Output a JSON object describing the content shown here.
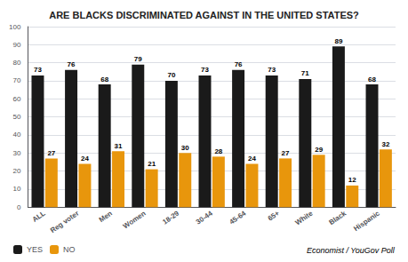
{
  "chart_data": {
    "type": "bar",
    "title": "ARE BLACKS DISCRIMINATED AGAINST IN THE UNITED STATES?",
    "categories": [
      "ALL",
      "Reg voter",
      "Men",
      "Women",
      "18-29",
      "30-44",
      "45-64",
      "65+",
      "White",
      "Black",
      "Hispanic"
    ],
    "series": [
      {
        "name": "YES",
        "color": "#1a1a1a",
        "values": [
          73,
          76,
          68,
          79,
          70,
          73,
          76,
          73,
          71,
          89,
          68
        ]
      },
      {
        "name": "NO",
        "color": "#E8960C",
        "values": [
          27,
          24,
          31,
          21,
          30,
          28,
          24,
          27,
          29,
          12,
          32
        ]
      }
    ],
    "ylim": [
      0,
      100
    ],
    "yticks": [
      0,
      10,
      20,
      30,
      40,
      50,
      60,
      70,
      80,
      90,
      100
    ],
    "grid": true,
    "legend": "lower left",
    "data_labels": true,
    "annotations": [
      "Economist / YouGov Poll"
    ]
  }
}
